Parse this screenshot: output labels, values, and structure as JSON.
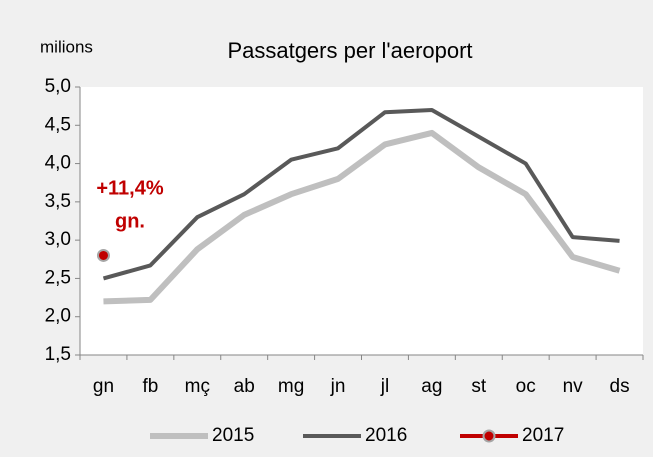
{
  "chart_data": {
    "type": "line",
    "title": "Passatgers per l'aeroport",
    "ylabel": "milions",
    "annotations": [
      "+11,4%",
      "gn."
    ],
    "categories": [
      "gn",
      "fb",
      "mç",
      "ab",
      "mg",
      "jn",
      "jl",
      "ag",
      "st",
      "oc",
      "nv",
      "ds"
    ],
    "series": [
      {
        "name": "2015",
        "color": "#bfbfbf",
        "values": [
          2.2,
          2.22,
          2.88,
          3.33,
          3.6,
          3.8,
          4.25,
          4.4,
          3.95,
          3.6,
          2.78,
          2.6
        ]
      },
      {
        "name": "2016",
        "color": "#595959",
        "values": [
          2.5,
          2.67,
          3.3,
          3.6,
          4.05,
          4.2,
          4.67,
          4.7,
          4.35,
          4.0,
          3.04,
          2.99
        ]
      },
      {
        "name": "2017",
        "color": "#c00000",
        "values": [
          2.8,
          null,
          null,
          null,
          null,
          null,
          null,
          null,
          null,
          null,
          null,
          null
        ]
      }
    ],
    "ylim": [
      1.5,
      5.0
    ],
    "yticks": [
      {
        "value": 1.5,
        "label": "1,5"
      },
      {
        "value": 2.0,
        "label": "2,0"
      },
      {
        "value": 2.5,
        "label": "2,5"
      },
      {
        "value": 3.0,
        "label": "3,0"
      },
      {
        "value": 3.5,
        "label": "3,5"
      },
      {
        "value": 4.0,
        "label": "4,0"
      },
      {
        "value": 4.5,
        "label": "4,5"
      },
      {
        "value": 5.0,
        "label": "5,0"
      }
    ],
    "grid": false,
    "legend": "bottom"
  }
}
